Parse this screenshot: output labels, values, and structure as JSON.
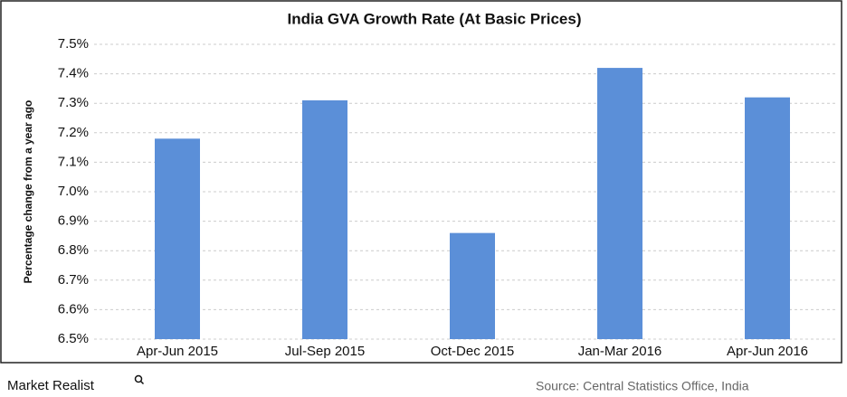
{
  "chart_data": {
    "type": "bar",
    "title": "India GVA Growth Rate (At Basic Prices)",
    "y_label": "Percentage change from a year ago",
    "categories": [
      "Apr-Jun 2015",
      "Jul-Sep 2015",
      "Oct-Dec 2015",
      "Jan-Mar 2016",
      "Apr-Jun 2016"
    ],
    "values": [
      7.18,
      7.31,
      6.86,
      7.42,
      7.32
    ],
    "color": "#5b8fd8",
    "ylim": [
      6.5,
      7.5
    ],
    "yticks": [
      {
        "value": 6.5,
        "label": "6.5%"
      },
      {
        "value": 6.6,
        "label": "6.6%"
      },
      {
        "value": 6.7,
        "label": "6.7%"
      },
      {
        "value": 6.8,
        "label": "6.8%"
      },
      {
        "value": 6.9,
        "label": "6.9%"
      },
      {
        "value": 7.0,
        "label": "7.0%"
      },
      {
        "value": 7.1,
        "label": "7.1%"
      },
      {
        "value": 7.2,
        "label": "7.2%"
      },
      {
        "value": 7.3,
        "label": "7.3%"
      },
      {
        "value": 7.4,
        "label": "7.4%"
      },
      {
        "value": 7.5,
        "label": "7.5%"
      }
    ],
    "grid": true,
    "brand": "Market Realist",
    "source": "Source: Central Statistics Office, India"
  }
}
